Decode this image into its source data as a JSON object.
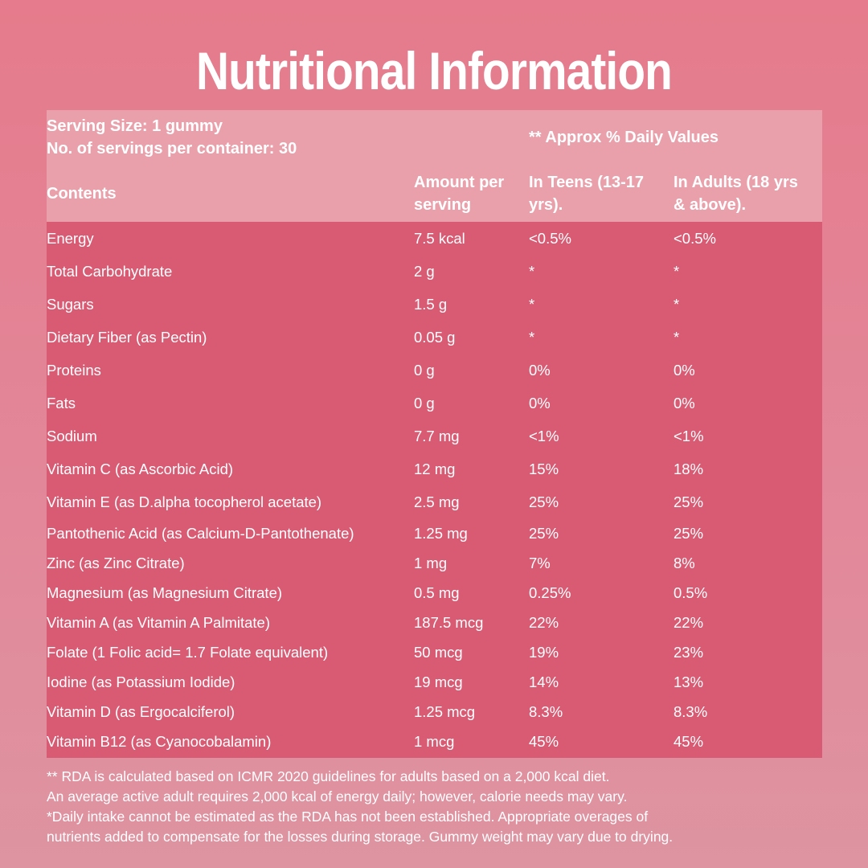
{
  "title": "Nutritional Information",
  "header": {
    "serving_size": "Serving Size: 1 gummy",
    "servings_per_container": "No. of servings per container: 30",
    "daily_values": "** Approx % Daily Values",
    "col_contents": "Contents",
    "col_amount": [
      "Amount per",
      "serving"
    ],
    "col_teens": [
      "In Teens (13-17",
      "yrs)."
    ],
    "col_adults": [
      "In Adults (18 yrs",
      "& above)."
    ]
  },
  "rows": [
    {
      "name": "Energy",
      "amount": "7.5 kcal",
      "teens": "<0.5%",
      "adults": "<0.5%"
    },
    {
      "name": "Total Carbohydrate",
      "amount": "2 g",
      "teens": "*",
      "adults": "*"
    },
    {
      "name": "Sugars",
      "amount": "1.5 g",
      "teens": "*",
      "adults": "*"
    },
    {
      "name": "Dietary Fiber (as Pectin)",
      "amount": "0.05 g",
      "teens": "*",
      "adults": "*"
    },
    {
      "name": "Proteins",
      "amount": "0 g",
      "teens": "0%",
      "adults": "0%"
    },
    {
      "name": "Fats",
      "amount": "0 g",
      "teens": "0%",
      "adults": "0%"
    },
    {
      "name": "Sodium",
      "amount": "7.7 mg",
      "teens": "<1%",
      "adults": "<1%"
    },
    {
      "name": "Vitamin C (as Ascorbic Acid)",
      "amount": "12 mg",
      "teens": "15%",
      "adults": "18%"
    },
    {
      "name": "Vitamin E (as D.alpha tocopherol acetate)",
      "amount": "2.5 mg",
      "teens": "25%",
      "adults": "25%"
    },
    {
      "name": "Pantothenic Acid (as Calcium-D-Pantothenate)",
      "amount": "1.25 mg",
      "teens": "25%",
      "adults": "25%"
    },
    {
      "name": "Zinc (as Zinc Citrate)",
      "amount": "1 mg",
      "teens": "7%",
      "adults": "8%"
    },
    {
      "name": "Magnesium (as Magnesium Citrate)",
      "amount": "0.5 mg",
      "teens": "0.25%",
      "adults": "0.5%"
    },
    {
      "name": "Vitamin A (as Vitamin A Palmitate)",
      "amount": "187.5 mcg",
      "teens": "22%",
      "adults": "22%"
    },
    {
      "name": "Folate (1 Folic acid= 1.7 Folate equivalent)",
      "amount": "50 mcg",
      "teens": "19%",
      "adults": "23%"
    },
    {
      "name": "Iodine (as Potassium Iodide)",
      "amount": "19 mcg",
      "teens": "14%",
      "adults": "13%"
    },
    {
      "name": "Vitamin D (as Ergocalciferol)",
      "amount": "1.25 mcg",
      "teens": "8.3%",
      "adults": "8.3%"
    },
    {
      "name": "Vitamin B12 (as Cyanocobalamin)",
      "amount": "1 mcg",
      "teens": "45%",
      "adults": "45%"
    }
  ],
  "footnotes": [
    "** RDA is calculated based on ICMR 2020 guidelines for adults based on a 2,000 kcal diet.",
    "An average active adult requires 2,000 kcal of energy daily; however, calorie needs may vary.",
    "*Daily intake cannot be estimated as the RDA has not been established. Appropriate overages of",
    "nutrients added to compensate for the losses during storage. Gummy weight may vary due to drying."
  ]
}
